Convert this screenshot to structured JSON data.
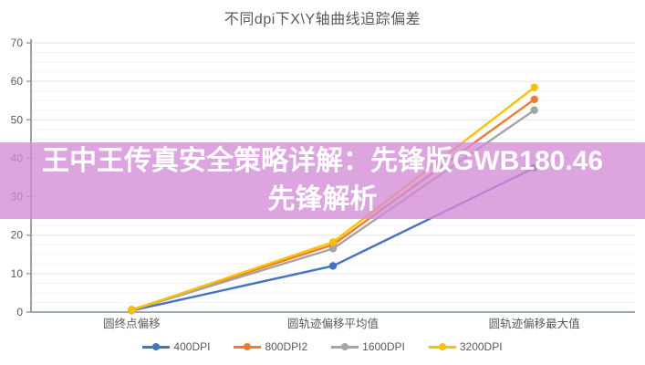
{
  "chart_data": {
    "type": "line",
    "title": "不同dpi下X\\Y轴曲线追踪偏差",
    "categories": [
      "圆终点偏移",
      "圆轨迹偏移平均值",
      "圆轨迹偏移最大值"
    ],
    "series": [
      {
        "name": "400DPI",
        "color": "#4472C4",
        "values": [
          0.4,
          12.0,
          37.5
        ]
      },
      {
        "name": "800DPI2",
        "color": "#ED7D31",
        "values": [
          0.6,
          17.5,
          55.3
        ]
      },
      {
        "name": "1600DPI",
        "color": "#A5A5A5",
        "values": [
          0.5,
          16.5,
          52.5
        ]
      },
      {
        "name": "3200DPI",
        "color": "#FFC000",
        "values": [
          0.5,
          18.2,
          58.4
        ]
      }
    ],
    "ylim": [
      0,
      70
    ],
    "yticks": [
      0,
      10,
      20,
      30,
      40,
      50,
      60,
      70
    ],
    "grid": "on",
    "legend_position": "bottom",
    "text_color": "#595959",
    "axis_color": "#7f8d99",
    "major_grid_color": "#e3e3e3",
    "minor_grid_color": "#f3f3f3"
  },
  "overlay": {
    "text": "王中王传真安全策略详解：先锋版GWB180.46先锋解析",
    "background": "rgba(212,140,215,0.78)",
    "text_color": "#ffffff"
  }
}
